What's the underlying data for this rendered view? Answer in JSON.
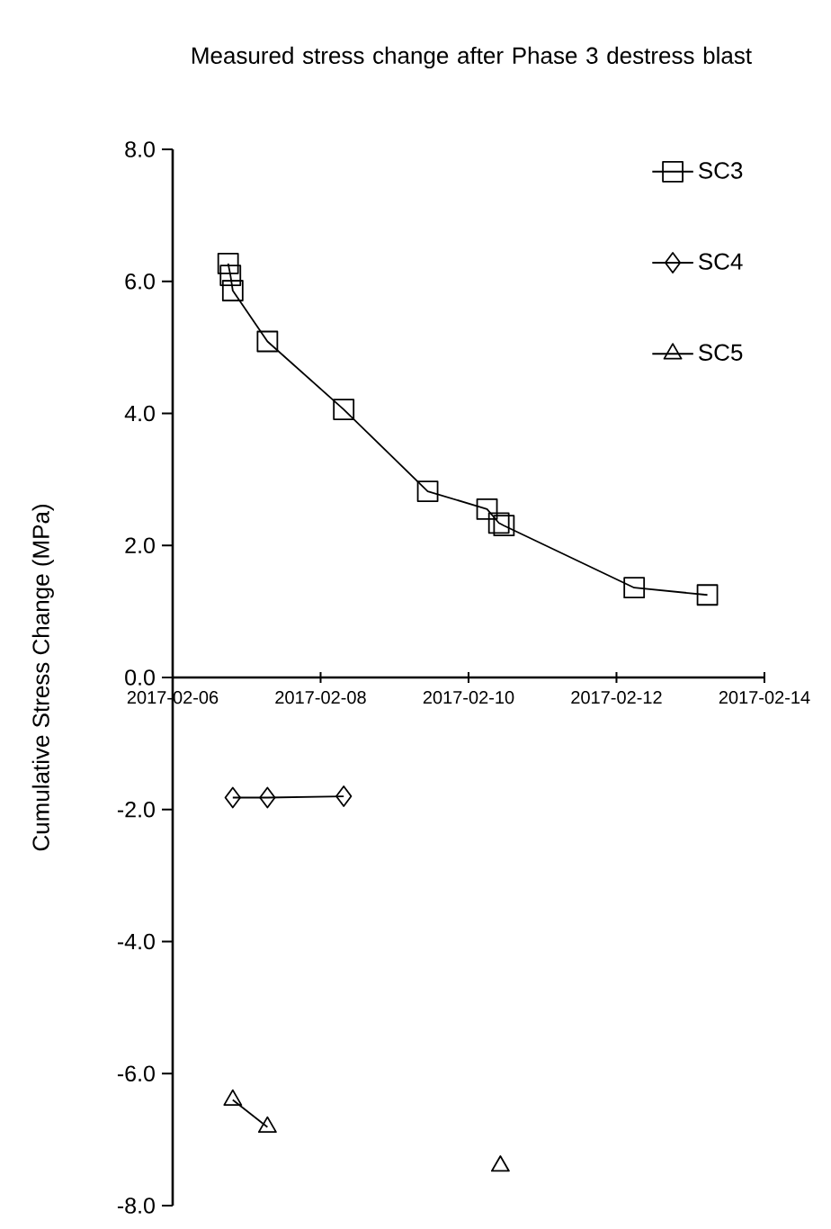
{
  "chart_data": {
    "type": "line",
    "title": "Measured stress change after Phase 3 destress blast",
    "ylabel": "Cumulative Stress Change (MPa)",
    "series": [
      {
        "name": "SC3",
        "color": "#000000",
        "marker": "square",
        "x": [
          "2017-02-06T18:00",
          "2017-02-06T18:45",
          "2017-02-06T19:30",
          "2017-02-07T06:45",
          "2017-02-08T07:30",
          "2017-02-09T10:45",
          "2017-02-10T06:00",
          "2017-02-10T09:50",
          "2017-02-10T11:30",
          "2017-02-12T05:45",
          "2017-02-13T05:30"
        ],
        "values": [
          6.27,
          6.09,
          5.86,
          5.09,
          4.06,
          2.82,
          2.55,
          2.34,
          2.3,
          1.36,
          1.25
        ]
      },
      {
        "name": "SC4",
        "color": "#000000",
        "marker": "diamond",
        "x": [
          "2017-02-06T19:30",
          "2017-02-07T06:45",
          "2017-02-08T07:30"
        ],
        "values": [
          -1.82,
          -1.82,
          -1.8
        ]
      },
      {
        "name": "SC5",
        "color": "#000000",
        "marker": "triangle",
        "x": [
          "2017-02-06T19:30",
          "2017-02-07T06:45",
          "2017-02-08T07:30",
          "2017-02-10T10:20"
        ],
        "values": [
          -6.4,
          -6.81,
          null,
          -7.4
        ]
      }
    ],
    "xlim": [
      "2017-02-06",
      "2017-02-14"
    ],
    "xticks": [
      "2017-02-06",
      "2017-02-08",
      "2017-02-10",
      "2017-02-12",
      "2017-02-14"
    ],
    "ylim": [
      -8,
      8
    ],
    "yticks": [
      {
        "value": -8,
        "label": "-8.0"
      },
      {
        "value": -6,
        "label": "-6.0"
      },
      {
        "value": -4,
        "label": "-4.0"
      },
      {
        "value": -2,
        "label": "-2.0"
      },
      {
        "value": 0,
        "label": "0.0"
      },
      {
        "value": 2,
        "label": "2.0"
      },
      {
        "value": 4,
        "label": "4.0"
      },
      {
        "value": 6,
        "label": "6.0"
      },
      {
        "value": 8,
        "label": "8.0"
      }
    ],
    "grid": false,
    "legend": "top right",
    "line_style": "solid"
  }
}
